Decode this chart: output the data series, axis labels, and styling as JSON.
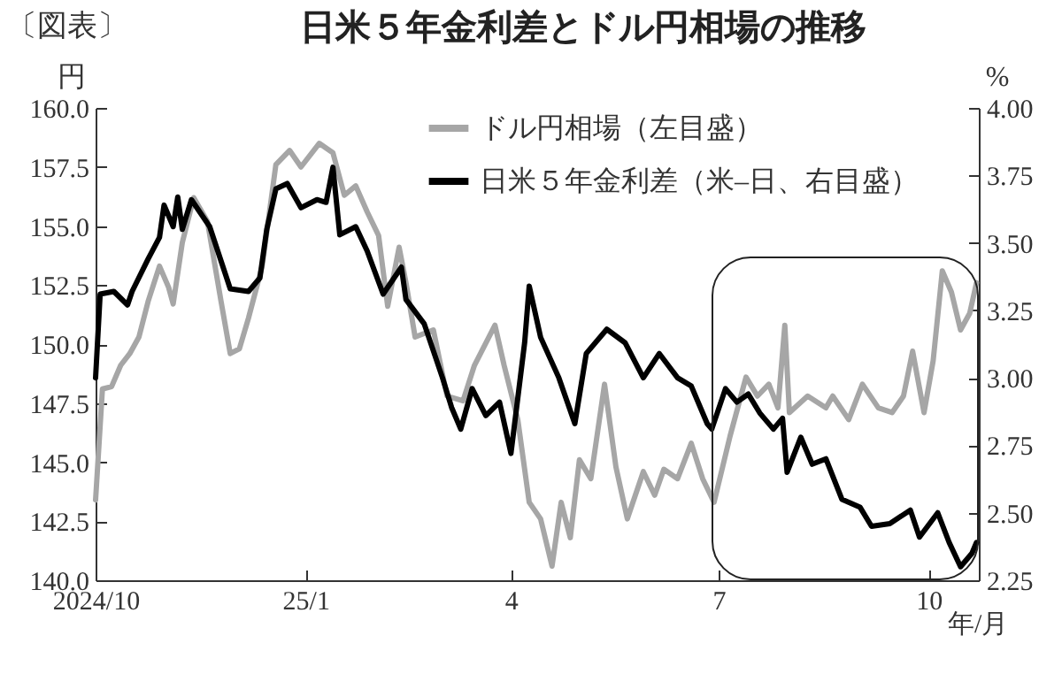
{
  "chart_data": {
    "type": "line",
    "title": "日米５年金利差とドル円相場の推移",
    "annotations": [
      "〔図表〕"
    ],
    "xlabel": "年/月",
    "ylabel": "円",
    "y2label": "%",
    "xlim": [
      "2024-10-01",
      "2025-10-23"
    ],
    "xticks": [
      {
        "value": "2024-10-01",
        "label": "2024/10"
      },
      {
        "value": "2025-01-01",
        "label": "25/1"
      },
      {
        "value": "2025-04-01",
        "label": "4"
      },
      {
        "value": "2025-07-01",
        "label": "7"
      },
      {
        "value": "2025-10-01",
        "label": "10"
      }
    ],
    "ylim": [
      140,
      160
    ],
    "yticks": [
      {
        "value": 140,
        "label": "140.0"
      },
      {
        "value": 142.5,
        "label": "142.5"
      },
      {
        "value": 145,
        "label": "145.0"
      },
      {
        "value": 147.5,
        "label": "147.5"
      },
      {
        "value": 150,
        "label": "150.0"
      },
      {
        "value": 152.5,
        "label": "152.5"
      },
      {
        "value": 155,
        "label": "155.0"
      },
      {
        "value": 157.5,
        "label": "157.5"
      },
      {
        "value": 160,
        "label": "160.0"
      }
    ],
    "y2lim": [
      2.25,
      4
    ],
    "y2ticks": [
      {
        "value": 2.25,
        "label": "2.25"
      },
      {
        "value": 2.5,
        "label": "2.50"
      },
      {
        "value": 2.75,
        "label": "2.75"
      },
      {
        "value": 3,
        "label": "3.00"
      },
      {
        "value": 3.25,
        "label": "3.25"
      },
      {
        "value": 3.5,
        "label": "3.50"
      },
      {
        "value": 3.75,
        "label": "3.75"
      },
      {
        "value": 4,
        "label": "4.00"
      }
    ],
    "legend": "top",
    "grid": false,
    "line_style": "solid",
    "marker": "none",
    "series": [
      {
        "name": "ドル円相場（左目盛）",
        "color": "#a6a6a6",
        "axis": "y",
        "x": [
          "2024-10-01",
          "2024-10-04",
          "2024-10-08",
          "2024-10-12",
          "2024-10-16",
          "2024-10-20",
          "2024-10-24",
          "2024-10-29",
          "2024-11-02",
          "2024-11-04",
          "2024-11-08",
          "2024-11-13",
          "2024-11-19",
          "2024-11-25",
          "2024-11-29",
          "2024-12-03",
          "2024-12-07",
          "2024-12-13",
          "2024-12-19",
          "2024-12-25",
          "2024-12-30",
          "2025-01-07",
          "2025-01-13",
          "2025-01-18",
          "2025-01-23",
          "2025-01-28",
          "2025-02-02",
          "2025-02-06",
          "2025-02-11",
          "2025-02-14",
          "2025-02-18",
          "2025-02-26",
          "2025-03-04",
          "2025-03-11",
          "2025-03-16",
          "2025-03-25",
          "2025-03-29",
          "2025-04-04",
          "2025-04-09",
          "2025-04-14",
          "2025-04-19",
          "2025-04-23",
          "2025-04-27",
          "2025-05-01",
          "2025-05-06",
          "2025-05-12",
          "2025-05-17",
          "2025-05-22",
          "2025-05-29",
          "2025-06-03",
          "2025-06-07",
          "2025-06-13",
          "2025-06-19",
          "2025-06-24",
          "2025-06-29",
          "2025-07-06",
          "2025-07-13",
          "2025-07-18",
          "2025-07-23",
          "2025-07-27",
          "2025-07-30",
          "2025-08-01",
          "2025-08-09",
          "2025-08-17",
          "2025-08-20",
          "2025-08-27",
          "2025-09-02",
          "2025-09-09",
          "2025-09-15",
          "2025-09-20",
          "2025-09-24",
          "2025-09-29",
          "2025-10-03",
          "2025-10-07",
          "2025-10-11",
          "2025-10-15",
          "2025-10-19",
          "2025-10-22"
        ],
        "values": [
          143.4,
          148.1,
          148.2,
          149.1,
          149.6,
          150.3,
          151.8,
          153.3,
          152.4,
          151.7,
          154.3,
          156.2,
          155.2,
          151.8,
          149.6,
          149.8,
          151.1,
          153.3,
          157.6,
          158.2,
          157.5,
          158.5,
          158.1,
          156.3,
          156.7,
          155.6,
          154.6,
          151.6,
          154.1,
          152.6,
          150.3,
          150.6,
          147.8,
          147.6,
          149.1,
          150.8,
          149.1,
          146.8,
          143.3,
          142.6,
          140.6,
          143.3,
          141.8,
          145.1,
          144.3,
          148.3,
          144.8,
          142.6,
          144.6,
          143.6,
          144.7,
          144.3,
          145.8,
          144.3,
          143.3,
          146.1,
          148.6,
          147.8,
          148.3,
          147.3,
          150.8,
          147.1,
          147.8,
          147.3,
          147.8,
          146.8,
          148.3,
          147.3,
          147.1,
          147.8,
          149.7,
          147.1,
          149.3,
          153.1,
          152.2,
          150.6,
          151.3,
          152.6
        ]
      },
      {
        "name": "日米５年金利差（米–日、右目盛）",
        "color": "#000000",
        "axis": "y2",
        "x": [
          "2024-10-01",
          "2024-10-03",
          "2024-10-09",
          "2024-10-15",
          "2024-10-17",
          "2024-10-24",
          "2024-10-29",
          "2024-10-31",
          "2024-11-04",
          "2024-11-06",
          "2024-11-08",
          "2024-11-12",
          "2024-11-20",
          "2024-11-29",
          "2024-12-07",
          "2024-12-12",
          "2024-12-15",
          "2024-12-19",
          "2024-12-24",
          "2024-12-30",
          "2025-01-06",
          "2025-01-10",
          "2025-01-13",
          "2025-01-16",
          "2025-01-23",
          "2025-01-28",
          "2025-02-04",
          "2025-02-12",
          "2025-02-14",
          "2025-02-22",
          "2025-03-02",
          "2025-03-06",
          "2025-03-10",
          "2025-03-15",
          "2025-03-21",
          "2025-03-27",
          "2025-04-01",
          "2025-04-07",
          "2025-04-09",
          "2025-04-14",
          "2025-04-22",
          "2025-04-29",
          "2025-05-04",
          "2025-05-13",
          "2025-05-21",
          "2025-05-29",
          "2025-06-05",
          "2025-06-13",
          "2025-06-19",
          "2025-06-26",
          "2025-06-28",
          "2025-07-04",
          "2025-07-09",
          "2025-07-14",
          "2025-07-19",
          "2025-07-25",
          "2025-07-29",
          "2025-07-31",
          "2025-08-06",
          "2025-08-11",
          "2025-08-17",
          "2025-08-24",
          "2025-09-01",
          "2025-09-06",
          "2025-09-14",
          "2025-09-23",
          "2025-09-27",
          "2025-10-05",
          "2025-10-10",
          "2025-10-15",
          "2025-10-20",
          "2025-10-22"
        ],
        "values": [
          3.0,
          3.31,
          3.32,
          3.27,
          3.32,
          3.44,
          3.52,
          3.64,
          3.56,
          3.67,
          3.55,
          3.66,
          3.56,
          3.33,
          3.32,
          3.37,
          3.55,
          3.7,
          3.72,
          3.63,
          3.66,
          3.65,
          3.78,
          3.53,
          3.56,
          3.47,
          3.31,
          3.41,
          3.29,
          3.2,
          3.0,
          2.89,
          2.81,
          2.96,
          2.86,
          2.91,
          2.72,
          3.13,
          3.34,
          3.15,
          3.0,
          2.83,
          3.09,
          3.18,
          3.13,
          3.0,
          3.09,
          3.0,
          2.97,
          2.83,
          2.81,
          2.96,
          2.91,
          2.94,
          2.87,
          2.81,
          2.85,
          2.65,
          2.78,
          2.68,
          2.7,
          2.55,
          2.52,
          2.45,
          2.46,
          2.51,
          2.41,
          2.5,
          2.39,
          2.3,
          2.35,
          2.39
        ]
      }
    ]
  }
}
